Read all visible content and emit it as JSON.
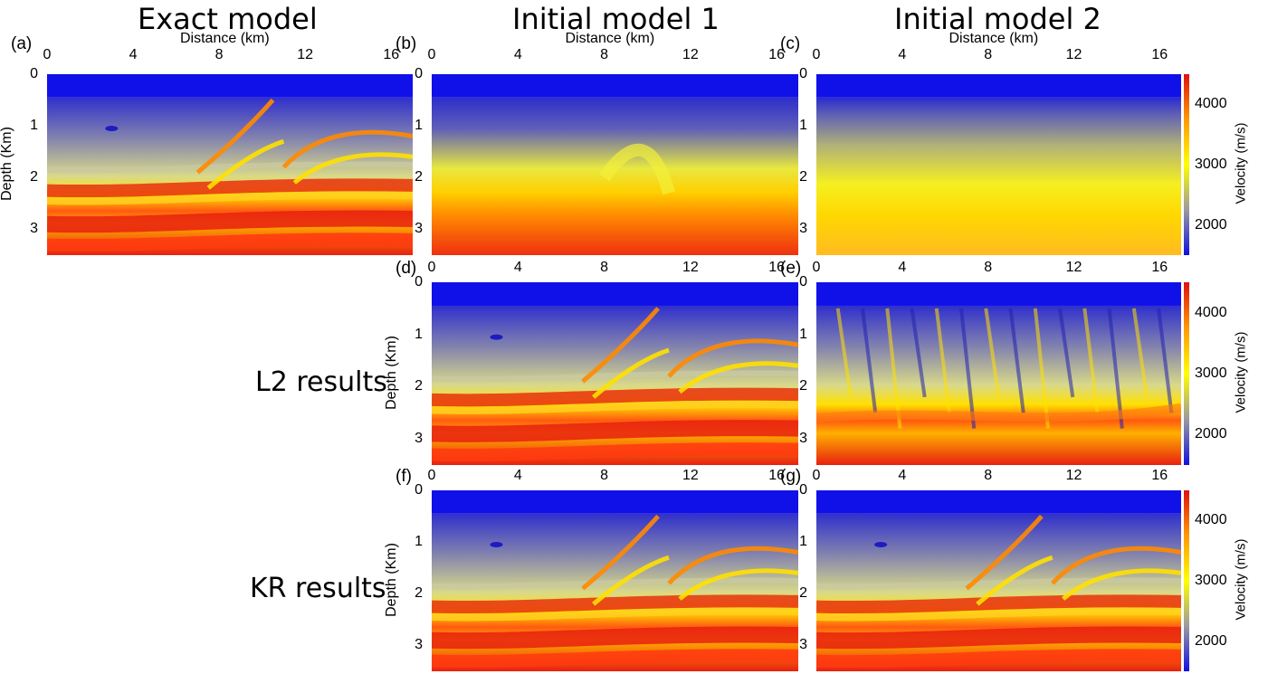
{
  "column_titles": [
    "Exact model",
    "Initial model 1",
    "Initial model 2"
  ],
  "row_titles": [
    "L2 results",
    "KR results"
  ],
  "x_axis_label": "Distance (km)",
  "y_axis_label": "Depth (Km)",
  "colorbar_label": "Velocity (m/s)",
  "x_ticks": [
    "0",
    "4",
    "8",
    "12",
    "16"
  ],
  "y_ticks": [
    "0",
    "1",
    "2",
    "3"
  ],
  "colorbar_ticks": [
    "4000",
    "3000",
    "2000"
  ],
  "panels": {
    "a": "(a)",
    "b": "(b)",
    "c": "(c)",
    "d": "(d)",
    "e": "(e)",
    "f": "(f)",
    "g": "(g)"
  },
  "chart_data": {
    "type": "heatmap",
    "figure": "velocity models (Marmousi-type section)",
    "x_range_km": [
      0,
      17
    ],
    "depth_range_km": [
      0,
      3.5
    ],
    "water_layer_depth_km": 0.45,
    "colorbar_range_mps": [
      1500,
      4500
    ],
    "colorbar_ticks_mps": [
      2000,
      3000,
      4000
    ],
    "colormap": [
      "#1010e0",
      "#9a9aa0",
      "#ffff00",
      "#ff9900",
      "#e01010"
    ],
    "panels": [
      {
        "id": "a",
        "content": "Exact model"
      },
      {
        "id": "b",
        "content": "Initial model 1"
      },
      {
        "id": "c",
        "content": "Initial model 2"
      },
      {
        "id": "d",
        "content": "L2 results, Initial model 1"
      },
      {
        "id": "e",
        "content": "L2 results, Initial model 2"
      },
      {
        "id": "f",
        "content": "KR results, Initial model 1"
      },
      {
        "id": "g",
        "content": "KR results, Initial model 2"
      }
    ]
  }
}
